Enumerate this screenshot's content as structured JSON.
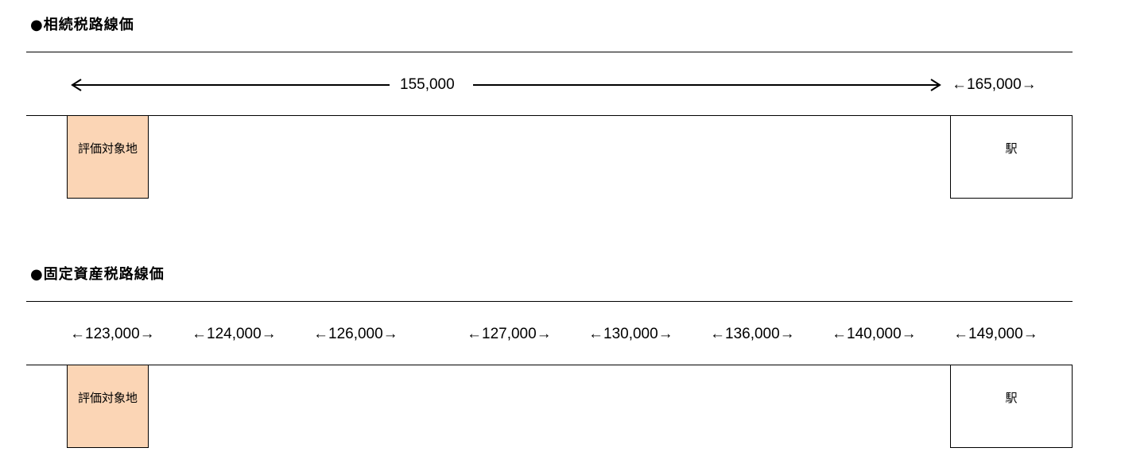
{
  "sections": [
    {
      "title": "●相続税路線価",
      "span_price": "155,000",
      "prices": [
        "←165,000→"
      ],
      "subject_label": "評価対象地",
      "station_label": "駅"
    },
    {
      "title": "●固定資産税路線価",
      "prices": [
        "←123,000→",
        "←124,000→",
        "←126,000→",
        "←127,000→",
        "←130,000→",
        "←136,000→",
        "←140,000→",
        "←149,000→"
      ],
      "subject_label": "評価対象地",
      "station_label": "駅"
    }
  ],
  "colors": {
    "subject_fill": "#fbd5b5"
  }
}
